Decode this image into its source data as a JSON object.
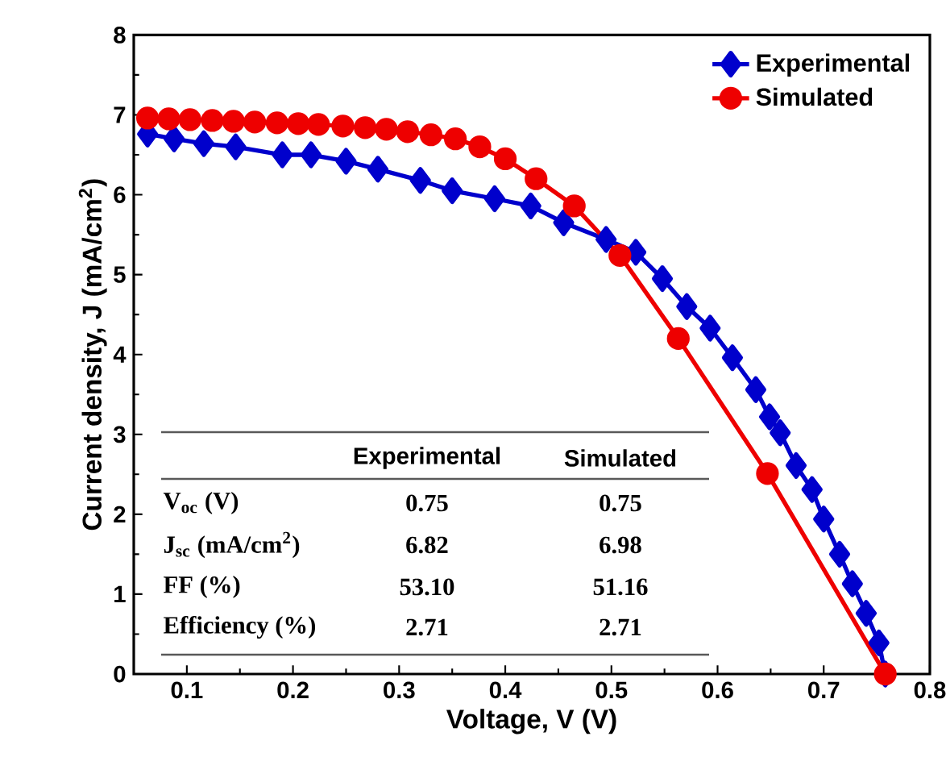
{
  "chart_data": {
    "type": "line",
    "xlabel": "Voltage, V (V)",
    "ylabel": "Current density, J (mA/cm$^{2}$)",
    "xlim": [
      0.05,
      0.8
    ],
    "ylim": [
      0,
      8
    ],
    "xticks": [
      0.1,
      0.2,
      0.3,
      0.4,
      0.5,
      0.6,
      0.7,
      0.8
    ],
    "yticks": [
      0,
      1,
      2,
      3,
      4,
      5,
      6,
      7,
      8
    ],
    "legend": "top right",
    "grid": false,
    "series": [
      {
        "name": "Experimental",
        "color": "#0000cc",
        "marker": "diamond",
        "x": [
          0.063,
          0.088,
          0.116,
          0.146,
          0.19,
          0.217,
          0.25,
          0.28,
          0.32,
          0.35,
          0.39,
          0.424,
          0.455,
          0.495,
          0.523,
          0.548,
          0.571,
          0.593,
          0.614,
          0.636,
          0.649,
          0.659,
          0.674,
          0.689,
          0.7,
          0.715,
          0.727,
          0.74,
          0.752,
          0.758
        ],
        "values": [
          6.76,
          6.7,
          6.64,
          6.6,
          6.5,
          6.5,
          6.42,
          6.32,
          6.18,
          6.05,
          5.95,
          5.86,
          5.65,
          5.44,
          5.28,
          4.95,
          4.6,
          4.33,
          3.96,
          3.56,
          3.22,
          3.02,
          2.61,
          2.31,
          1.94,
          1.5,
          1.13,
          0.76,
          0.39,
          0
        ]
      },
      {
        "name": "Simulated",
        "color": "#ee0000",
        "marker": "circle",
        "x": [
          0.063,
          0.083,
          0.103,
          0.124,
          0.144,
          0.164,
          0.185,
          0.205,
          0.224,
          0.247,
          0.268,
          0.288,
          0.308,
          0.33,
          0.353,
          0.376,
          0.4,
          0.429,
          0.465,
          0.508,
          0.563,
          0.647,
          0.758
        ],
        "values": [
          6.96,
          6.95,
          6.94,
          6.93,
          6.92,
          6.91,
          6.9,
          6.89,
          6.88,
          6.86,
          6.84,
          6.82,
          6.79,
          6.75,
          6.7,
          6.6,
          6.45,
          6.2,
          5.86,
          5.24,
          4.2,
          2.51,
          0
        ]
      }
    ],
    "annotations": [
      "Experimental",
      "Simulated",
      "V$_{oc}$ (V)",
      "0.75",
      "0.75",
      "J$_{sc}$ (mA/cm$^{2}$)",
      "6.82",
      "6.98",
      "FF  (%)",
      "53.10",
      "51.16",
      "Efficiency (%)",
      "2.71",
      "2.71"
    ]
  }
}
